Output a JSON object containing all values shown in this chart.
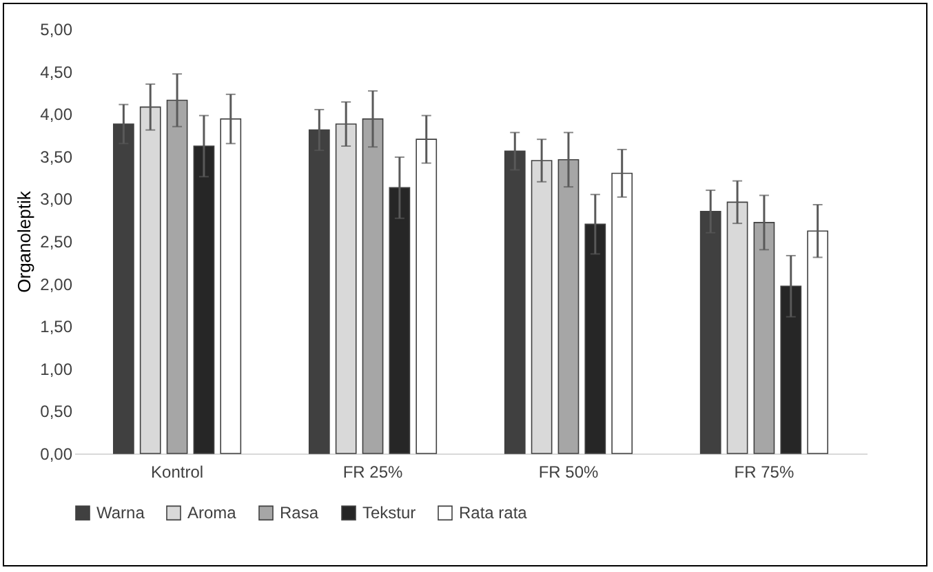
{
  "chart_data": {
    "type": "bar",
    "ylabel": "Organoleptik",
    "categories": [
      "Kontrol",
      "FR 25%",
      "FR 50%",
      "FR 75%"
    ],
    "series": [
      {
        "name": "Warna",
        "color": "#404040",
        "values": [
          3.88,
          3.81,
          3.56,
          2.85
        ],
        "errors": [
          0.23,
          0.24,
          0.22,
          0.25
        ]
      },
      {
        "name": "Aroma",
        "color": "#d9d9d9",
        "values": [
          4.08,
          3.88,
          3.45,
          2.96
        ],
        "errors": [
          0.27,
          0.26,
          0.25,
          0.25
        ]
      },
      {
        "name": "Rasa",
        "color": "#a6a6a6",
        "values": [
          4.16,
          3.94,
          3.46,
          2.72
        ],
        "errors": [
          0.31,
          0.33,
          0.32,
          0.32
        ]
      },
      {
        "name": "Tekstur",
        "color": "#262626",
        "values": [
          3.62,
          3.13,
          2.7,
          1.97
        ],
        "errors": [
          0.36,
          0.36,
          0.35,
          0.36
        ]
      },
      {
        "name": "Rata rata",
        "color": "#ffffff",
        "values": [
          3.94,
          3.7,
          3.3,
          2.62
        ],
        "errors": [
          0.29,
          0.28,
          0.28,
          0.31
        ]
      }
    ],
    "ylim": [
      0,
      5
    ],
    "yticks": [
      {
        "value": 0,
        "label": "0,00"
      },
      {
        "value": 0.5,
        "label": "0,50"
      },
      {
        "value": 1,
        "label": "1,00"
      },
      {
        "value": 1.5,
        "label": "1,50"
      },
      {
        "value": 2,
        "label": "2,00"
      },
      {
        "value": 2.5,
        "label": "2,50"
      },
      {
        "value": 3,
        "label": "3,00"
      },
      {
        "value": 3.5,
        "label": "3,50"
      },
      {
        "value": 4,
        "label": "4,00"
      },
      {
        "value": 4.5,
        "label": "4,50"
      },
      {
        "value": 5,
        "label": "5,00"
      }
    ],
    "legend": "bottom"
  }
}
